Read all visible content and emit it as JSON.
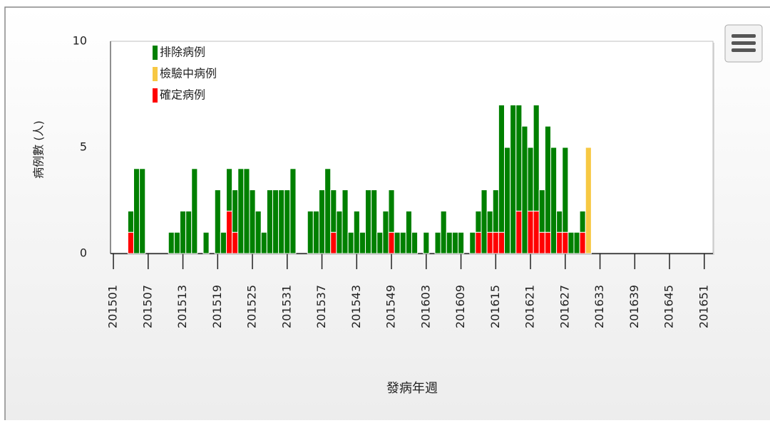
{
  "chart_data": {
    "type": "bar",
    "stacked": true,
    "xlabel": "發病年週",
    "ylabel": "病例數 (人)",
    "categories": [
      "201501",
      null,
      null,
      null,
      null,
      null,
      "201507",
      null,
      null,
      null,
      null,
      null,
      "201513",
      null,
      null,
      null,
      null,
      null,
      "201519",
      null,
      null,
      null,
      null,
      null,
      "201525",
      null,
      null,
      null,
      null,
      null,
      "201531",
      null,
      null,
      null,
      null,
      null,
      "201537",
      null,
      null,
      null,
      null,
      null,
      "201543",
      null,
      null,
      null,
      null,
      null,
      "201549",
      null,
      null,
      null,
      null,
      null,
      "201603",
      null,
      null,
      null,
      null,
      null,
      "201609",
      null,
      null,
      null,
      null,
      null,
      "201615",
      null,
      null,
      null,
      null,
      null,
      "201621",
      null,
      null,
      null,
      null,
      null,
      "201627",
      null,
      null,
      null,
      null,
      null,
      "201633",
      null,
      null,
      null,
      null,
      null,
      "201639",
      null,
      null,
      null,
      null,
      null,
      "201645",
      null,
      null,
      null,
      null,
      null,
      "201651",
      null
    ],
    "series": [
      {
        "name": "排除病例",
        "color": "#008000",
        "values": [
          0,
          0,
          0,
          1,
          4,
          4,
          0,
          0,
          0,
          0,
          1,
          1,
          2,
          2,
          4,
          0,
          1,
          0,
          3,
          1,
          2,
          2,
          4,
          4,
          3,
          2,
          1,
          3,
          3,
          3,
          3,
          4,
          0,
          0,
          2,
          2,
          3,
          4,
          2,
          2,
          3,
          1,
          2,
          1,
          3,
          3,
          1,
          2,
          2,
          1,
          1,
          2,
          1,
          0,
          1,
          0,
          1,
          2,
          1,
          1,
          1,
          0,
          1,
          1,
          3,
          1,
          2,
          6,
          5,
          7,
          5,
          6,
          3,
          5,
          2,
          5,
          5,
          1,
          4,
          1,
          1,
          1,
          0,
          0,
          0,
          0,
          0,
          0,
          0,
          0,
          0,
          0,
          0,
          0,
          0,
          0,
          0,
          0,
          0,
          0,
          0,
          0,
          0,
          0
        ]
      },
      {
        "name": "檢驗中病例",
        "color": "#f7c843",
        "values": [
          0,
          0,
          0,
          0,
          0,
          0,
          0,
          0,
          0,
          0,
          0,
          0,
          0,
          0,
          0,
          0,
          0,
          0,
          0,
          0,
          0,
          0,
          0,
          0,
          0,
          0,
          0,
          0,
          0,
          0,
          0,
          0,
          0,
          0,
          0,
          0,
          0,
          0,
          0,
          0,
          0,
          0,
          0,
          0,
          0,
          0,
          0,
          0,
          0,
          0,
          0,
          0,
          0,
          0,
          0,
          0,
          0,
          0,
          0,
          0,
          0,
          0,
          0,
          0,
          0,
          0,
          0,
          0,
          0,
          0,
          0,
          0,
          0,
          0,
          0,
          0,
          0,
          0,
          0,
          0,
          0,
          0,
          5,
          0,
          0,
          0,
          0,
          0,
          0,
          0,
          0,
          0,
          0,
          0,
          0,
          0,
          0,
          0,
          0,
          0,
          0,
          0,
          0,
          0
        ]
      },
      {
        "name": "確定病例",
        "color": "#ff0000",
        "values": [
          0,
          0,
          0,
          1,
          0,
          0,
          0,
          0,
          0,
          0,
          0,
          0,
          0,
          0,
          0,
          0,
          0,
          0,
          0,
          0,
          2,
          1,
          0,
          0,
          0,
          0,
          0,
          0,
          0,
          0,
          0,
          0,
          0,
          0,
          0,
          0,
          0,
          0,
          1,
          0,
          0,
          0,
          0,
          0,
          0,
          0,
          0,
          0,
          1,
          0,
          0,
          0,
          0,
          0,
          0,
          0,
          0,
          0,
          0,
          0,
          0,
          0,
          0,
          1,
          0,
          1,
          1,
          1,
          0,
          0,
          2,
          0,
          2,
          2,
          1,
          1,
          0,
          1,
          1,
          0,
          0,
          1,
          0,
          0,
          0,
          0,
          0,
          0,
          0,
          0,
          0,
          0,
          0,
          0,
          0,
          0,
          0,
          0,
          0,
          0,
          0,
          0,
          0,
          0
        ]
      }
    ],
    "ylim": [
      0,
      10
    ],
    "yticks": [
      0,
      5,
      10
    ],
    "grid": false,
    "legend": "top-left"
  }
}
